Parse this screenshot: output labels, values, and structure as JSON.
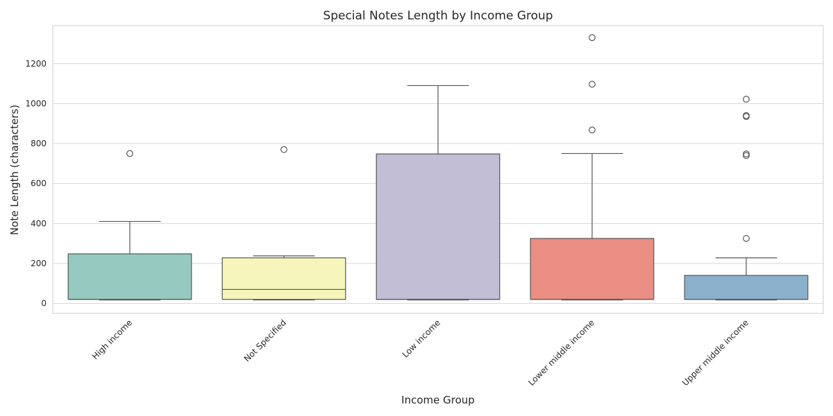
{
  "chart_data": {
    "type": "box",
    "title": "Special Notes Length by Income Group",
    "xlabel": "Income Group",
    "ylabel": "Note Length (characters)",
    "ylim": [
      -50,
      1390
    ],
    "yticks": [
      0,
      200,
      400,
      600,
      800,
      1000,
      1200
    ],
    "grid": true,
    "categories": [
      {
        "name": "High income",
        "color": "#96cac1",
        "whislo": 17,
        "q1": 20,
        "med": 20,
        "q3": 248,
        "whishi": 410,
        "fliers": [
          750
        ]
      },
      {
        "name": "Not Specified",
        "color": "#f6f6bc",
        "whislo": 17,
        "q1": 20,
        "med": 70,
        "q3": 228,
        "whishi": 238,
        "fliers": [
          770
        ]
      },
      {
        "name": "Low income",
        "color": "#c1bed6",
        "whislo": 17,
        "q1": 20,
        "med": 20,
        "q3": 748,
        "whishi": 1090,
        "fliers": []
      },
      {
        "name": "Lower middle income",
        "color": "#ea8e83",
        "whislo": 17,
        "q1": 20,
        "med": 20,
        "q3": 325,
        "whishi": 750,
        "fliers": [
          868,
          1097,
          1330
        ]
      },
      {
        "name": "Upper middle income",
        "color": "#8ab0cb",
        "whislo": 17,
        "q1": 20,
        "med": 20,
        "q3": 140,
        "whishi": 228,
        "fliers": [
          325,
          740,
          748,
          935,
          940,
          1022
        ]
      }
    ]
  }
}
